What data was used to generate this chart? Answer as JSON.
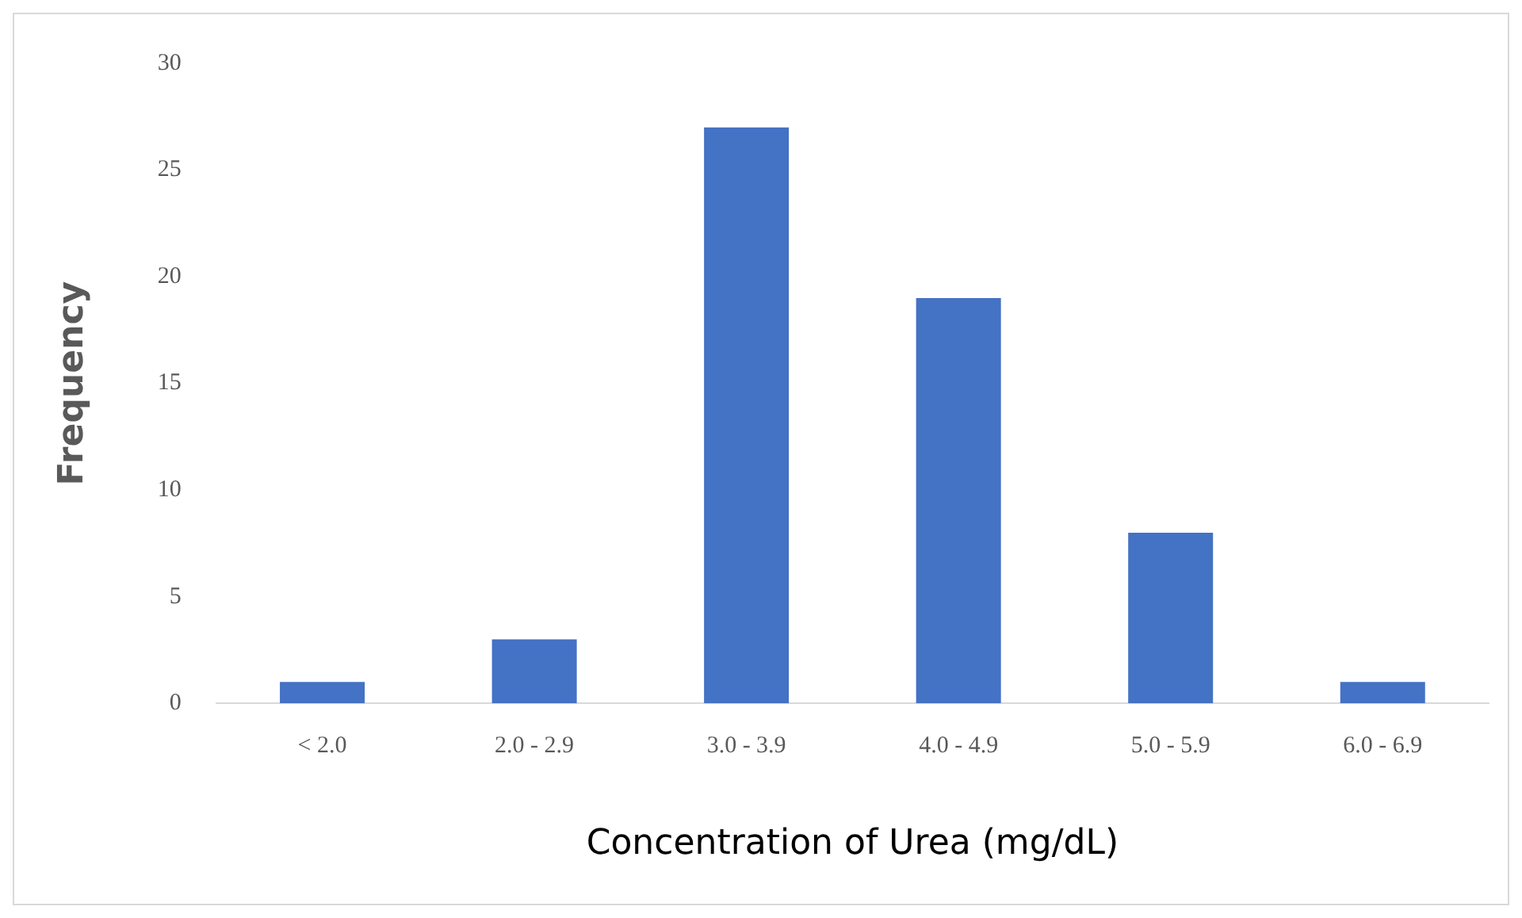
{
  "chart_data": {
    "type": "bar",
    "xlabel": "Concentration of Urea (mg/dL)",
    "ylabel": "Frequency",
    "categories": [
      "< 2.0",
      "2.0 - 2.9",
      "3.0 - 3.9",
      "4.0 - 4.9",
      "5.0 - 5.9",
      "6.0 - 6.9"
    ],
    "values": [
      1,
      3,
      27,
      19,
      8,
      1
    ],
    "color": "#4472c4",
    "ylim": [
      0,
      30
    ],
    "yticks": [
      0,
      5,
      10,
      15,
      20,
      25,
      30
    ],
    "grid": false,
    "legend": false
  }
}
